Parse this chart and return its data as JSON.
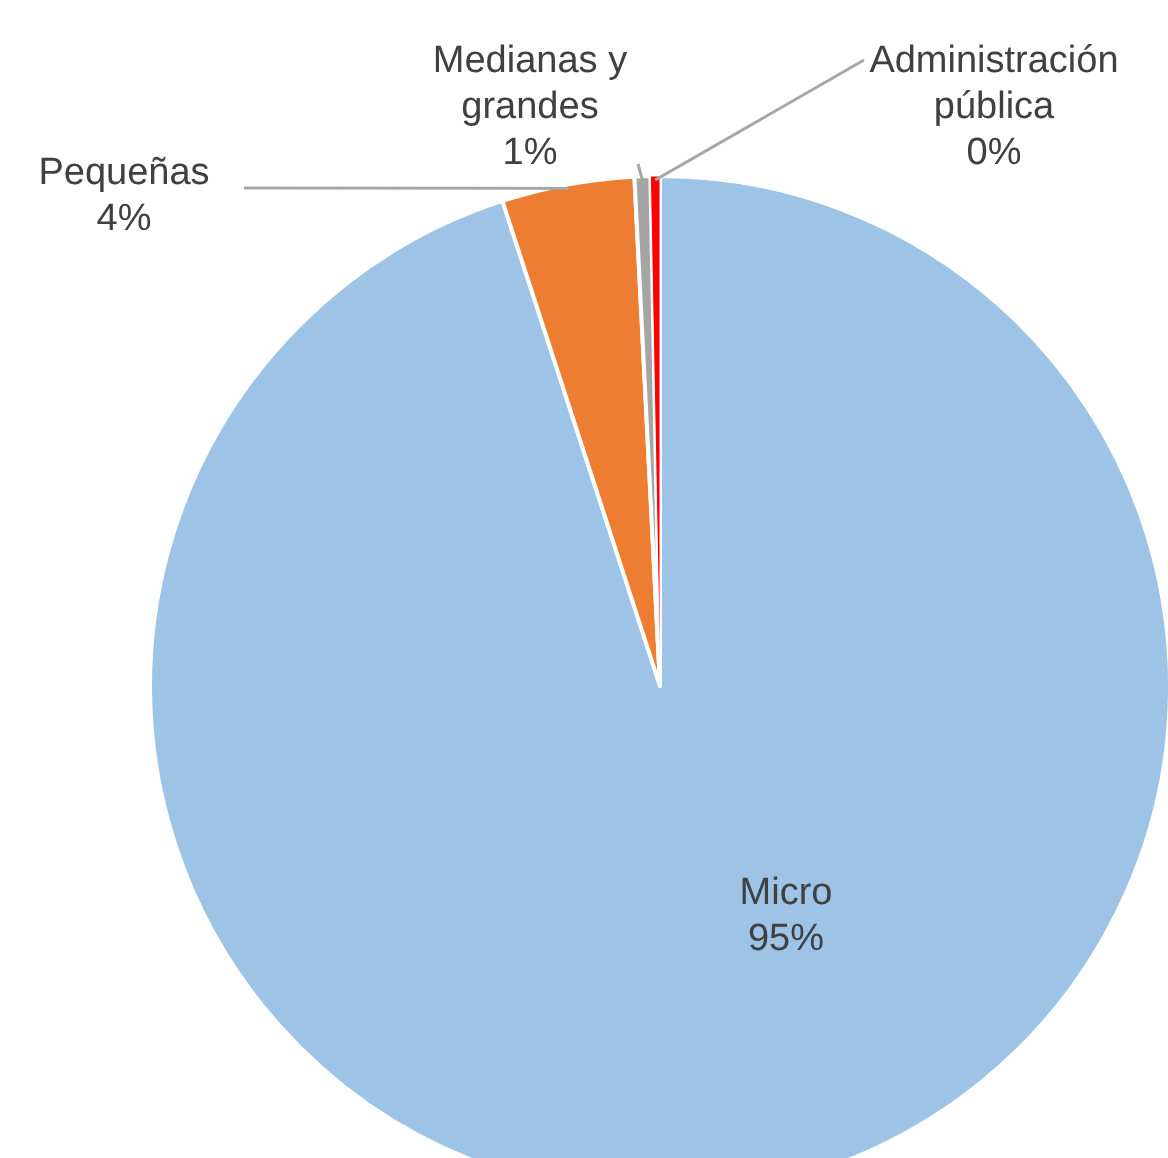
{
  "chart_data": {
    "type": "pie",
    "categories": [
      "Micro",
      "Pequeñas",
      "Medianas y grandes",
      "Administración pública"
    ],
    "values": [
      95.0,
      4.2,
      0.5,
      0.3
    ],
    "value_labels": [
      "95%",
      "4%",
      "1%",
      "0%"
    ],
    "colors": [
      "#9dc3e6",
      "#ed7d31",
      "#a5a5a5",
      "#ff0000"
    ]
  }
}
